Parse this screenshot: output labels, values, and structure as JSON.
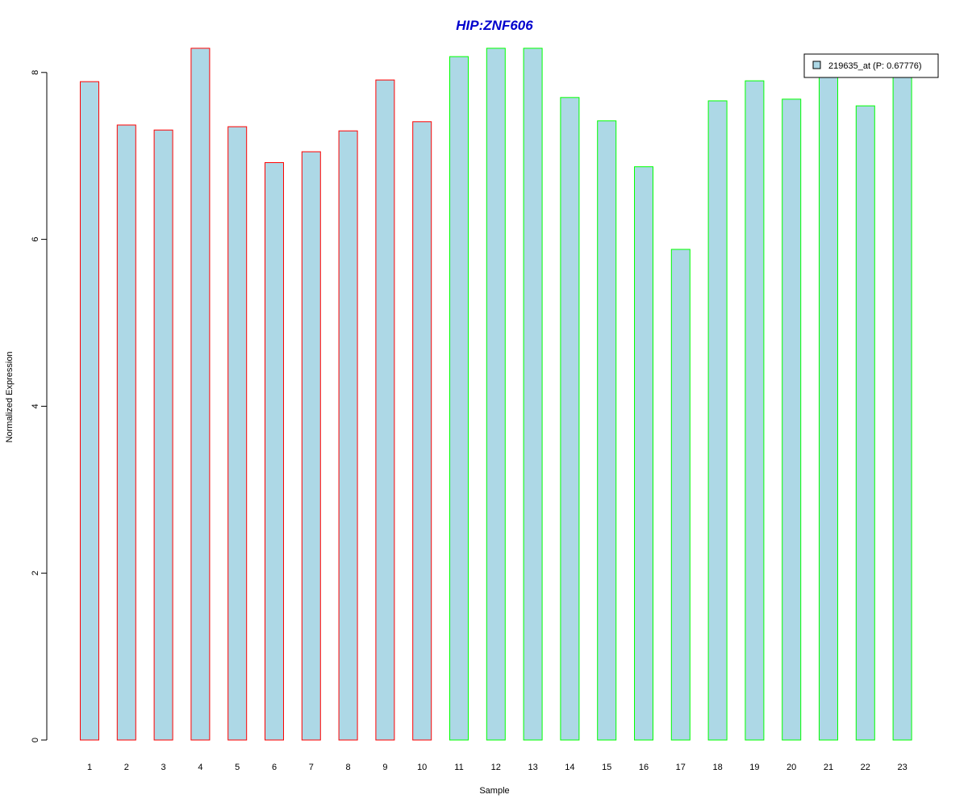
{
  "chart_data": {
    "type": "bar",
    "title": "HIP:ZNF606",
    "xlabel": "Sample",
    "ylabel": "Normalized Expression",
    "categories": [
      "1",
      "2",
      "3",
      "4",
      "5",
      "6",
      "7",
      "8",
      "9",
      "10",
      "11",
      "12",
      "13",
      "14",
      "15",
      "16",
      "17",
      "18",
      "19",
      "20",
      "21",
      "22",
      "23"
    ],
    "series": [
      {
        "name": "219635_at (P: 0.67776)",
        "values": [
          7.89,
          7.37,
          7.31,
          8.29,
          7.35,
          6.92,
          7.05,
          7.3,
          7.91,
          7.41,
          8.19,
          8.29,
          8.29,
          7.7,
          7.42,
          6.87,
          5.88,
          7.66,
          7.9,
          7.68,
          8.05,
          7.6,
          8.0
        ]
      }
    ],
    "group_outline": [
      "red",
      "red",
      "red",
      "red",
      "red",
      "red",
      "red",
      "red",
      "red",
      "red",
      "green",
      "green",
      "green",
      "green",
      "green",
      "green",
      "green",
      "green",
      "green",
      "green",
      "green",
      "green",
      "green"
    ],
    "ylim": [
      0,
      8.3
    ],
    "yticks": [
      0,
      2,
      4,
      6,
      8
    ],
    "grid": false,
    "legend_position": "top-right",
    "colors": {
      "bar_fill": "#add8e6",
      "red_outline": "#ff0000",
      "green_outline": "#00ff00",
      "title": "#0000cd",
      "axis": "#000000"
    }
  }
}
